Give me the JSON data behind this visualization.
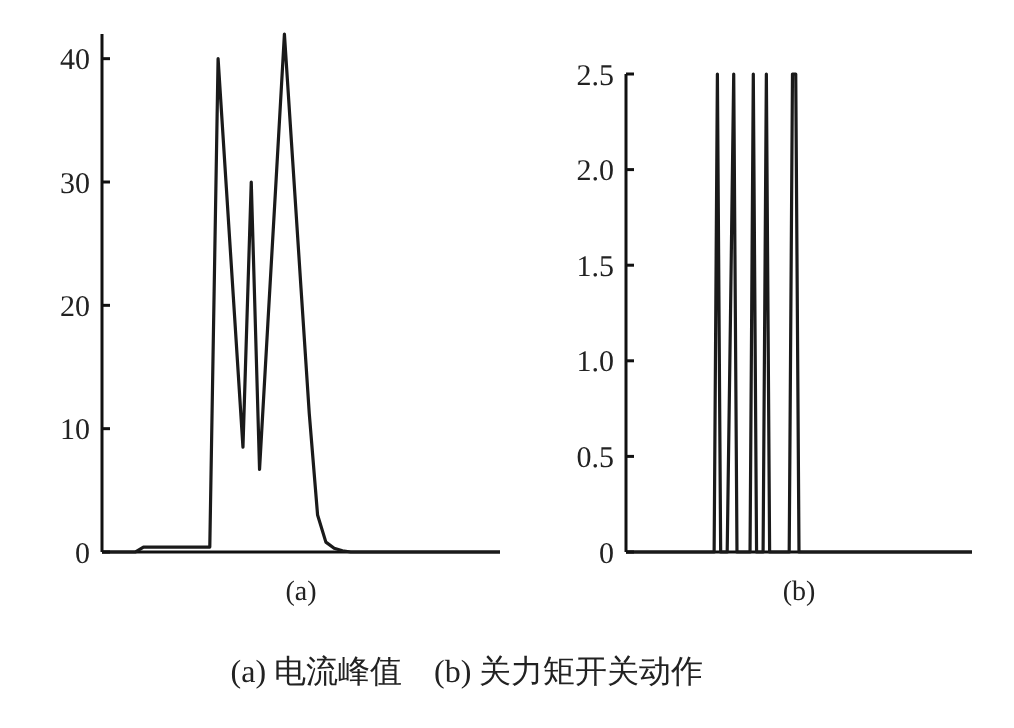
{
  "chart_data": [
    {
      "type": "line",
      "xlabel": "(a)",
      "annotations": [
        "(a) 电流峰值　(b) 关力矩开关动作"
      ],
      "tick_labels": "y",
      "categories": [
        null,
        null,
        null,
        null,
        null,
        null,
        null,
        null,
        null,
        null,
        null,
        null,
        null,
        null,
        null,
        null,
        null,
        null,
        null,
        null,
        null,
        null,
        null,
        null,
        null,
        null,
        null,
        null,
        null,
        null,
        null,
        null,
        null,
        null,
        null,
        null,
        null,
        null,
        null,
        null,
        null,
        null,
        null,
        null,
        null,
        null,
        null,
        null,
        null
      ],
      "ylim": [
        0,
        42
      ],
      "yticks": [
        0,
        10,
        20,
        30,
        40
      ],
      "grid": false,
      "marker": "none",
      "line_style": "solid",
      "series": [
        {
          "color": "#1a1a1a",
          "values": [
            0,
            0,
            0,
            0,
            0,
            0.4,
            0.4,
            0.4,
            0.4,
            0.4,
            0.4,
            0.4,
            0.4,
            0.4,
            40,
            29.5,
            19,
            8.5,
            30,
            6.7,
            18.5,
            30.2,
            42,
            31.7,
            21.4,
            11.2,
            3,
            0.8,
            0.3,
            0.1,
            0,
            0,
            0,
            0,
            0,
            0,
            0,
            0,
            0,
            0,
            0,
            0,
            0,
            0,
            0,
            0,
            0,
            0,
            0
          ]
        }
      ]
    },
    {
      "type": "line",
      "xlabel": "(b)",
      "tick_labels": "y",
      "categories": [
        null,
        null,
        null,
        null,
        null,
        null,
        null,
        null,
        null,
        null,
        null,
        null,
        null,
        null,
        null,
        null,
        null,
        null,
        null,
        null,
        null,
        null,
        null,
        null,
        null,
        null,
        null,
        null,
        null,
        null,
        null,
        null,
        null,
        null,
        null,
        null,
        null,
        null,
        null,
        null,
        null,
        null,
        null,
        null,
        null,
        null,
        null,
        null,
        null,
        null,
        null,
        null,
        null,
        null,
        null,
        null,
        null,
        null,
        null,
        null,
        null,
        null,
        null,
        null,
        null,
        null,
        null,
        null,
        null,
        null,
        null,
        null,
        null,
        null,
        null,
        null,
        null,
        null,
        null,
        null,
        null,
        null,
        null,
        null,
        null,
        null,
        null,
        null,
        null,
        null,
        null,
        null,
        null,
        null,
        null,
        null,
        null,
        null,
        null,
        null,
        null,
        null,
        null,
        null,
        null,
        null,
        null
      ],
      "ylim": [
        0,
        2.5
      ],
      "yticks": [
        0,
        0.5,
        {
          "value": 1,
          "label": "1.0"
        },
        1.5,
        {
          "value": 2,
          "label": "2.0"
        },
        2.5
      ],
      "grid": false,
      "marker": "none",
      "line_style": "solid",
      "series": [
        {
          "color": "#1a1a1a",
          "values": [
            0,
            0,
            0,
            0,
            0,
            0,
            0,
            0,
            0,
            0,
            0,
            0,
            0,
            0,
            0,
            0,
            0,
            0,
            0,
            0,
            0,
            0,
            0,
            0,
            0,
            0,
            0,
            0,
            2.5,
            0,
            0,
            0,
            1.22,
            2.5,
            0,
            0,
            0,
            0,
            0,
            2.5,
            0,
            0,
            0,
            2.5,
            0,
            0,
            0,
            0,
            0,
            0,
            0,
            2.5,
            2.5,
            0,
            0,
            0,
            0,
            0,
            0,
            0,
            0,
            0,
            0,
            0,
            0,
            0,
            0,
            0,
            0,
            0,
            0,
            0,
            0,
            0,
            0,
            0,
            0,
            0,
            0,
            0,
            0,
            0,
            0,
            0,
            0,
            0,
            0,
            0,
            0,
            0,
            0,
            0,
            0,
            0,
            0,
            0,
            0,
            0,
            0,
            0,
            0,
            0,
            0,
            0,
            0,
            0,
            0
          ]
        }
      ]
    }
  ]
}
